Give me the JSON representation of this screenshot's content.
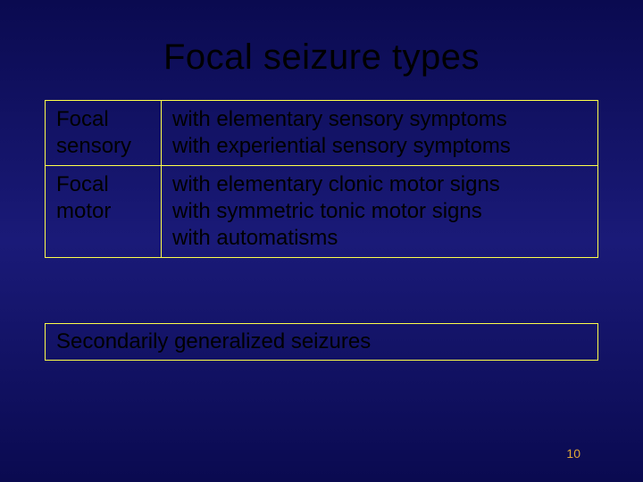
{
  "title": "Focal seizure types",
  "table": {
    "border_color": "#ffff4a",
    "rows": [
      {
        "type_label": "Focal sensory",
        "desc_lines": [
          "with elementary sensory symptoms",
          "with experiential sensory symptoms"
        ]
      },
      {
        "type_label": "Focal motor",
        "desc_lines": [
          "with elementary clonic motor signs",
          "with symmetric tonic motor signs",
          "with automatisms"
        ]
      }
    ]
  },
  "subtitle": "Secondarily generalized seizures",
  "page_number": "10",
  "style": {
    "background_gradient": [
      "#0a0a50",
      "#1a1a78",
      "#0a0a50"
    ],
    "title_fontsize": 40,
    "body_fontsize": 24,
    "text_color": "#000000",
    "page_num_color": "#dfa838",
    "slide_width": 720,
    "slide_height": 540
  }
}
